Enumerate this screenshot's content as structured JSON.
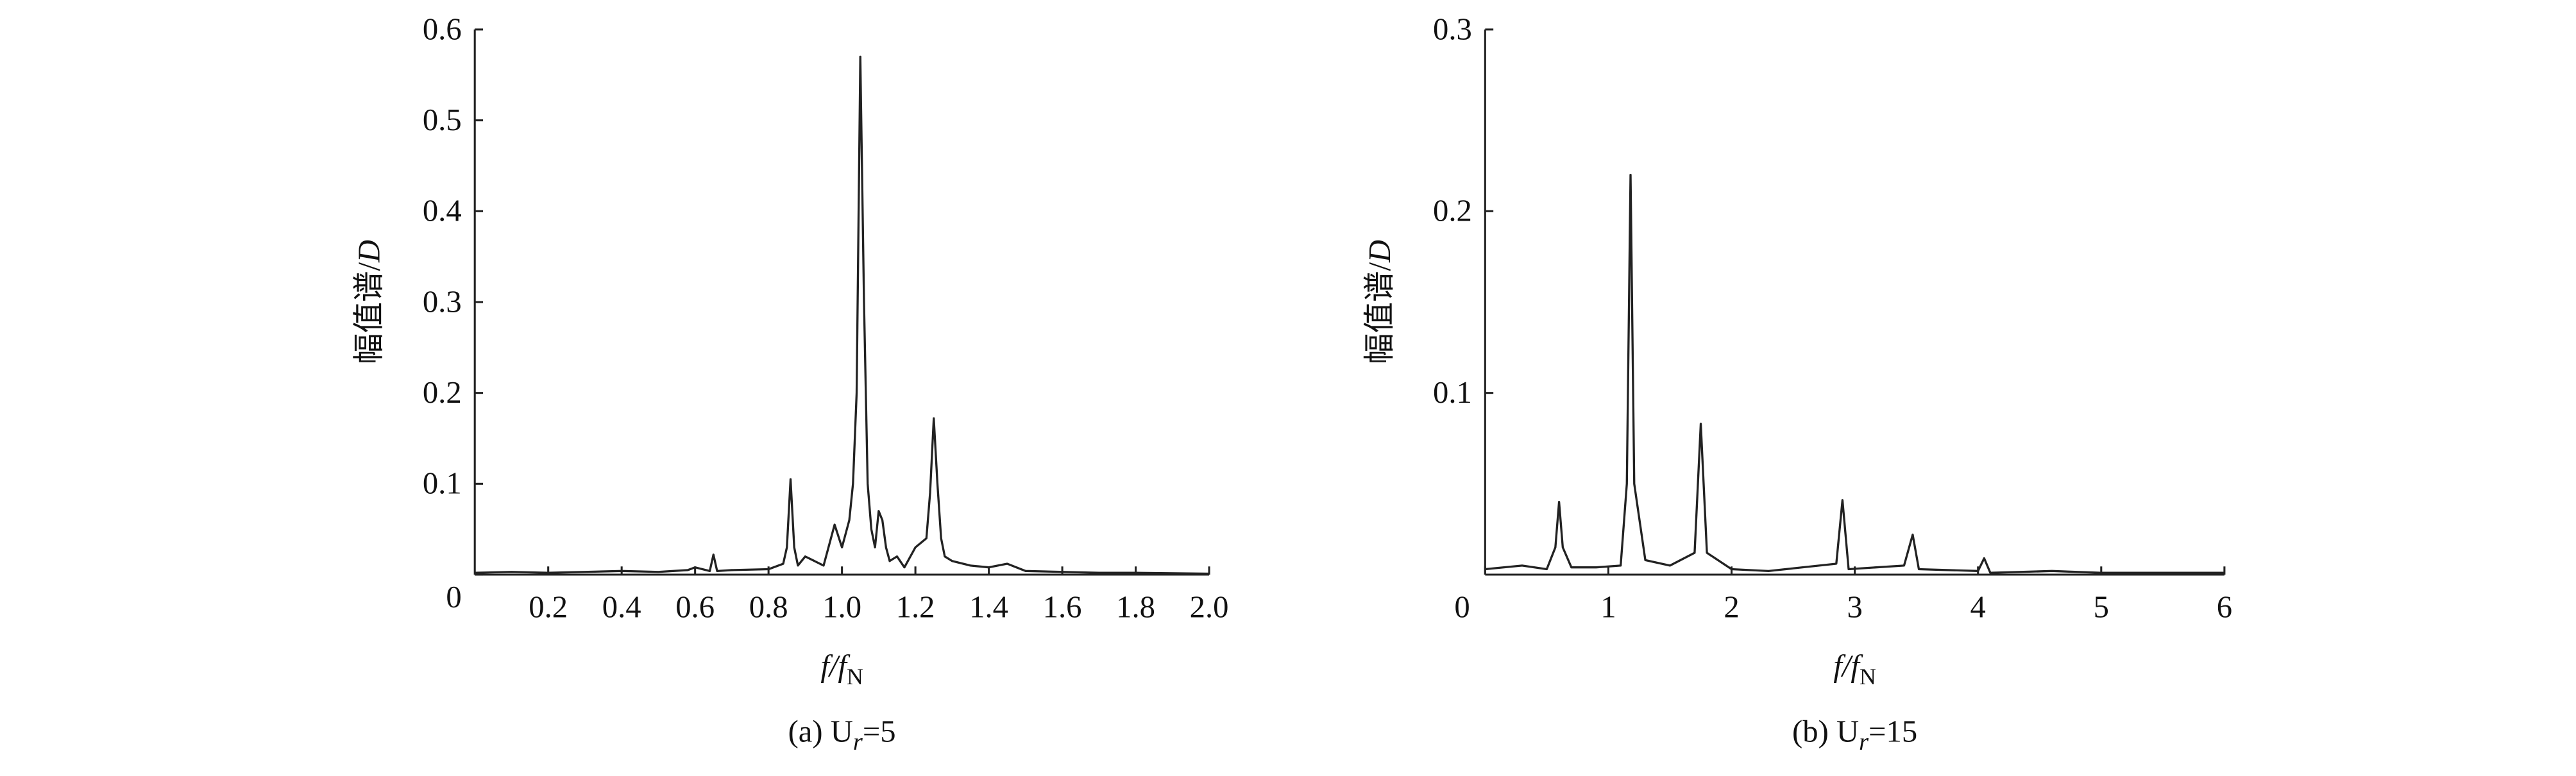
{
  "chart_data": [
    {
      "type": "line",
      "ylabel": [
        "幅值谱/",
        "D"
      ],
      "xlabel": [
        "f/f",
        "N"
      ],
      "caption": [
        "(a) U",
        "r",
        "=5"
      ],
      "color": "#222222",
      "xlim": [
        0,
        2.0
      ],
      "ylim": [
        0,
        0.6
      ],
      "xticks": [
        0.2,
        0.4,
        0.6,
        0.8,
        {
          "value": 1,
          "label": "1.0"
        },
        1.2,
        1.4,
        1.6,
        1.8,
        {
          "value": 2,
          "label": "2.0"
        }
      ],
      "yticks": [
        0,
        0.1,
        0.2,
        0.3,
        0.4,
        0.5,
        0.6
      ],
      "x": [
        0.0,
        0.1,
        0.2,
        0.3,
        0.4,
        0.5,
        0.58,
        0.6,
        0.64,
        0.65,
        0.66,
        0.7,
        0.8,
        0.84,
        0.85,
        0.86,
        0.87,
        0.88,
        0.9,
        0.95,
        0.98,
        1.0,
        1.02,
        1.03,
        1.04,
        1.05,
        1.06,
        1.07,
        1.08,
        1.09,
        1.1,
        1.11,
        1.12,
        1.13,
        1.15,
        1.17,
        1.2,
        1.23,
        1.24,
        1.25,
        1.26,
        1.27,
        1.28,
        1.3,
        1.35,
        1.4,
        1.45,
        1.5,
        1.6,
        1.7,
        1.8,
        2.0
      ],
      "values": [
        0.002,
        0.003,
        0.002,
        0.003,
        0.004,
        0.003,
        0.005,
        0.008,
        0.004,
        0.022,
        0.004,
        0.005,
        0.006,
        0.012,
        0.03,
        0.105,
        0.03,
        0.01,
        0.02,
        0.01,
        0.055,
        0.03,
        0.06,
        0.1,
        0.2,
        0.57,
        0.3,
        0.1,
        0.05,
        0.03,
        0.07,
        0.06,
        0.03,
        0.015,
        0.02,
        0.008,
        0.03,
        0.04,
        0.09,
        0.172,
        0.1,
        0.04,
        0.02,
        0.015,
        0.01,
        0.008,
        0.012,
        0.004,
        0.003,
        0.002,
        0.002,
        0.001
      ]
    },
    {
      "type": "line",
      "ylabel": [
        "幅值谱/",
        "D"
      ],
      "xlabel": [
        "f/f",
        "N"
      ],
      "caption": [
        "(b) U",
        "r",
        "=15"
      ],
      "color": "#222222",
      "xlim": [
        0,
        6
      ],
      "ylim": [
        0,
        0.3
      ],
      "xticks": [
        0,
        1,
        2,
        3,
        4,
        5,
        6
      ],
      "yticks": [
        0.1,
        0.2,
        0.3
      ],
      "x": [
        0.0,
        0.3,
        0.5,
        0.57,
        0.6,
        0.63,
        0.7,
        0.9,
        1.1,
        1.15,
        1.18,
        1.21,
        1.3,
        1.5,
        1.7,
        1.75,
        1.8,
        2.0,
        2.3,
        2.85,
        2.9,
        2.95,
        3.4,
        3.47,
        3.52,
        4.0,
        4.05,
        4.1,
        4.6,
        5.0,
        6.0
      ],
      "values": [
        0.003,
        0.005,
        0.003,
        0.015,
        0.04,
        0.015,
        0.004,
        0.004,
        0.005,
        0.05,
        0.22,
        0.05,
        0.008,
        0.005,
        0.012,
        0.083,
        0.012,
        0.003,
        0.002,
        0.006,
        0.041,
        0.003,
        0.005,
        0.022,
        0.003,
        0.002,
        0.009,
        0.001,
        0.002,
        0.001,
        0.001
      ]
    }
  ]
}
